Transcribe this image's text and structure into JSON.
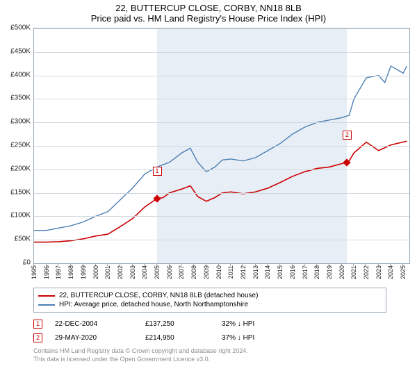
{
  "title": "22, BUTTERCUP CLOSE, CORBY, NN18 8LB",
  "subtitle": "Price paid vs. HM Land Registry's House Price Index (HPI)",
  "chart": {
    "type": "line",
    "background_color": "#ffffff",
    "grid_color": "#d0d8e0",
    "border_color": "#9aaab7",
    "shaded_color": "#e8eef6",
    "y": {
      "min": 0,
      "max": 500000,
      "step": 50000,
      "labels": [
        "£0",
        "£50K",
        "£100K",
        "£150K",
        "£200K",
        "£250K",
        "£300K",
        "£350K",
        "£400K",
        "£450K",
        "£500K"
      ]
    },
    "x": {
      "min": 1995,
      "max": 2025.5,
      "labels": [
        "1995",
        "1996",
        "1997",
        "1998",
        "1999",
        "2000",
        "2001",
        "2002",
        "2003",
        "2004",
        "2005",
        "2006",
        "2007",
        "2008",
        "2009",
        "2010",
        "2011",
        "2012",
        "2013",
        "2014",
        "2015",
        "2016",
        "2017",
        "2018",
        "2019",
        "2020",
        "2021",
        "2022",
        "2023",
        "2024",
        "2025"
      ]
    },
    "shaded_ranges": [
      [
        2004.97,
        2020.41
      ]
    ],
    "series": [
      {
        "name": "22, BUTTERCUP CLOSE, CORBY, NN18 8LB (detached house)",
        "color": "#cc0000",
        "line_width": 1.6,
        "points": [
          [
            1995,
            45000
          ],
          [
            1996,
            45000
          ],
          [
            1997,
            46000
          ],
          [
            1998,
            48000
          ],
          [
            1999,
            52000
          ],
          [
            2000,
            58000
          ],
          [
            2001,
            62000
          ],
          [
            2002,
            78000
          ],
          [
            2003,
            95000
          ],
          [
            2004,
            120000
          ],
          [
            2004.97,
            137250
          ],
          [
            2005.5,
            140000
          ],
          [
            2006,
            150000
          ],
          [
            2007,
            158000
          ],
          [
            2007.7,
            165000
          ],
          [
            2008.3,
            142000
          ],
          [
            2009,
            132000
          ],
          [
            2009.7,
            140000
          ],
          [
            2010.3,
            150000
          ],
          [
            2011,
            152000
          ],
          [
            2012,
            148000
          ],
          [
            2013,
            152000
          ],
          [
            2014,
            160000
          ],
          [
            2015,
            172000
          ],
          [
            2016,
            185000
          ],
          [
            2017,
            195000
          ],
          [
            2018,
            202000
          ],
          [
            2019,
            205000
          ],
          [
            2020.41,
            214950
          ],
          [
            2020.6,
            218000
          ],
          [
            2021,
            235000
          ],
          [
            2022,
            258000
          ],
          [
            2023,
            240000
          ],
          [
            2024,
            252000
          ],
          [
            2025.3,
            260000
          ]
        ]
      },
      {
        "name": "HPI: Average price, detached house, North Northamptonshire",
        "color": "#4b7fb3",
        "line_width": 1.4,
        "points": [
          [
            1995,
            70000
          ],
          [
            1996,
            70000
          ],
          [
            1997,
            75000
          ],
          [
            1998,
            80000
          ],
          [
            1999,
            88000
          ],
          [
            2000,
            100000
          ],
          [
            2001,
            110000
          ],
          [
            2002,
            135000
          ],
          [
            2003,
            160000
          ],
          [
            2004,
            190000
          ],
          [
            2005,
            205000
          ],
          [
            2006,
            215000
          ],
          [
            2007,
            235000
          ],
          [
            2007.7,
            245000
          ],
          [
            2008.3,
            215000
          ],
          [
            2009,
            195000
          ],
          [
            2009.7,
            205000
          ],
          [
            2010.3,
            220000
          ],
          [
            2011,
            222000
          ],
          [
            2012,
            218000
          ],
          [
            2013,
            225000
          ],
          [
            2014,
            240000
          ],
          [
            2015,
            255000
          ],
          [
            2016,
            275000
          ],
          [
            2017,
            290000
          ],
          [
            2018,
            300000
          ],
          [
            2019,
            305000
          ],
          [
            2020,
            310000
          ],
          [
            2020.6,
            315000
          ],
          [
            2021,
            350000
          ],
          [
            2022,
            395000
          ],
          [
            2023,
            400000
          ],
          [
            2023.5,
            385000
          ],
          [
            2024,
            420000
          ],
          [
            2025,
            405000
          ],
          [
            2025.3,
            420000
          ]
        ]
      }
    ],
    "sale_markers": [
      {
        "label": "1",
        "x": 2004.97,
        "y": 137250
      },
      {
        "label": "2",
        "x": 2020.41,
        "y": 214950
      }
    ],
    "marker_box_offset_y": -46,
    "label_fontsize": 10
  },
  "legend": {
    "items": [
      {
        "color": "#cc0000",
        "label": "22, BUTTERCUP CLOSE, CORBY, NN18 8LB (detached house)"
      },
      {
        "color": "#4b7fb3",
        "label": "HPI: Average price, detached house, North Northamptonshire"
      }
    ]
  },
  "transactions": [
    {
      "label": "1",
      "date": "22-DEC-2004",
      "price": "£137,250",
      "delta": "32% ↓ HPI"
    },
    {
      "label": "2",
      "date": "29-MAY-2020",
      "price": "£214,950",
      "delta": "37% ↓ HPI"
    }
  ],
  "footnote_line1": "Contains HM Land Registry data © Crown copyright and database right 2024.",
  "footnote_line2": "This data is licensed under the Open Government Licence v3.0."
}
